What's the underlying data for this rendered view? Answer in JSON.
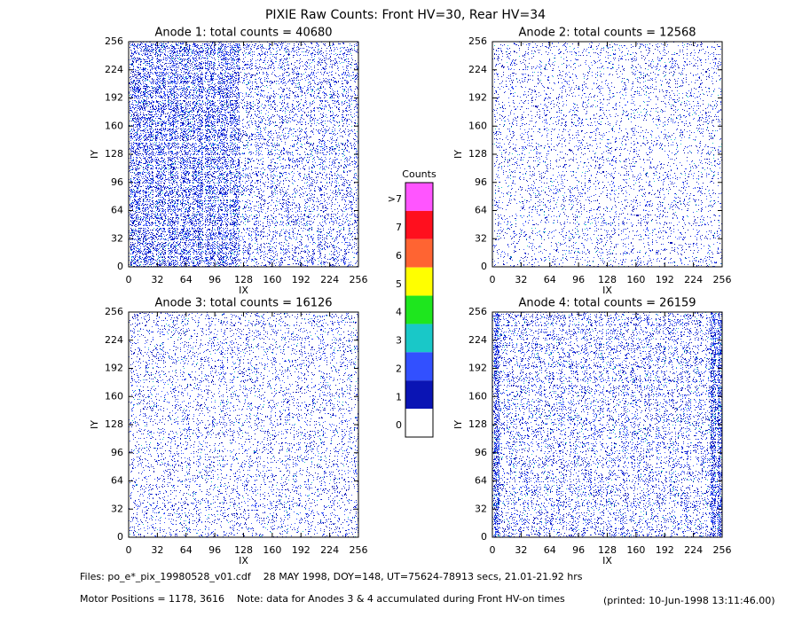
{
  "title": "PIXIE Raw Counts:  Front HV=30, Rear HV=34",
  "chart_data": [
    {
      "type": "heatmap",
      "title": "Anode 1: total counts = 40680",
      "x_label": "IX",
      "y_label": "IY",
      "xlim": [
        0,
        256
      ],
      "xticks": [
        0,
        32,
        64,
        96,
        128,
        160,
        192,
        224,
        256
      ],
      "ylim": [
        0,
        256
      ],
      "yticks": [
        0,
        32,
        64,
        96,
        128,
        160,
        192,
        224,
        256
      ]
    },
    {
      "type": "heatmap",
      "title": "Anode 2: total counts = 12568",
      "x_label": "IX",
      "y_label": "IY",
      "xlim": [
        0,
        256
      ],
      "xticks": [
        0,
        32,
        64,
        96,
        128,
        160,
        192,
        224,
        256
      ],
      "ylim": [
        0,
        256
      ],
      "yticks": [
        0,
        32,
        64,
        96,
        128,
        160,
        192,
        224,
        256
      ]
    },
    {
      "type": "heatmap",
      "title": "Anode 3: total counts = 16126",
      "x_label": "IX",
      "y_label": "IY",
      "xlim": [
        0,
        256
      ],
      "xticks": [
        0,
        32,
        64,
        96,
        128,
        160,
        192,
        224,
        256
      ],
      "ylim": [
        0,
        256
      ],
      "yticks": [
        0,
        32,
        64,
        96,
        128,
        160,
        192,
        224,
        256
      ]
    },
    {
      "type": "heatmap",
      "title": "Anode 4: total counts = 26159",
      "x_label": "IX",
      "y_label": "IY",
      "xlim": [
        0,
        256
      ],
      "xticks": [
        0,
        32,
        64,
        96,
        128,
        160,
        192,
        224,
        256
      ],
      "ylim": [
        0,
        256
      ],
      "yticks": [
        0,
        32,
        64,
        96,
        128,
        160,
        192,
        224,
        256
      ]
    }
  ],
  "colorbar": {
    "title": "Counts",
    "levels": [
      {
        "label": ">7",
        "color": "#ff55ff"
      },
      {
        "label": "7",
        "color": "#ff0f1e"
      },
      {
        "label": "6",
        "color": "#ff6432"
      },
      {
        "label": "5",
        "color": "#ffff00"
      },
      {
        "label": "4",
        "color": "#1ee61e"
      },
      {
        "label": "3",
        "color": "#19c8c8"
      },
      {
        "label": "2",
        "color": "#3250ff"
      },
      {
        "label": "1",
        "color": "#0a14b4"
      },
      {
        "label": "0",
        "color": "#ffffff"
      }
    ]
  },
  "footer": {
    "files": "Files: po_e*_pix_19980528_v01.cdf    28 MAY 1998, DOY=148, UT=75624-78913 secs, 21.01-21.92 hrs",
    "motor": "Motor Positions = 1178, 3616    Note: data for Anodes 3 & 4 accumulated during Front HV-on times",
    "printed": "(printed: 10-Jun-1998 13:11:46.00)"
  }
}
